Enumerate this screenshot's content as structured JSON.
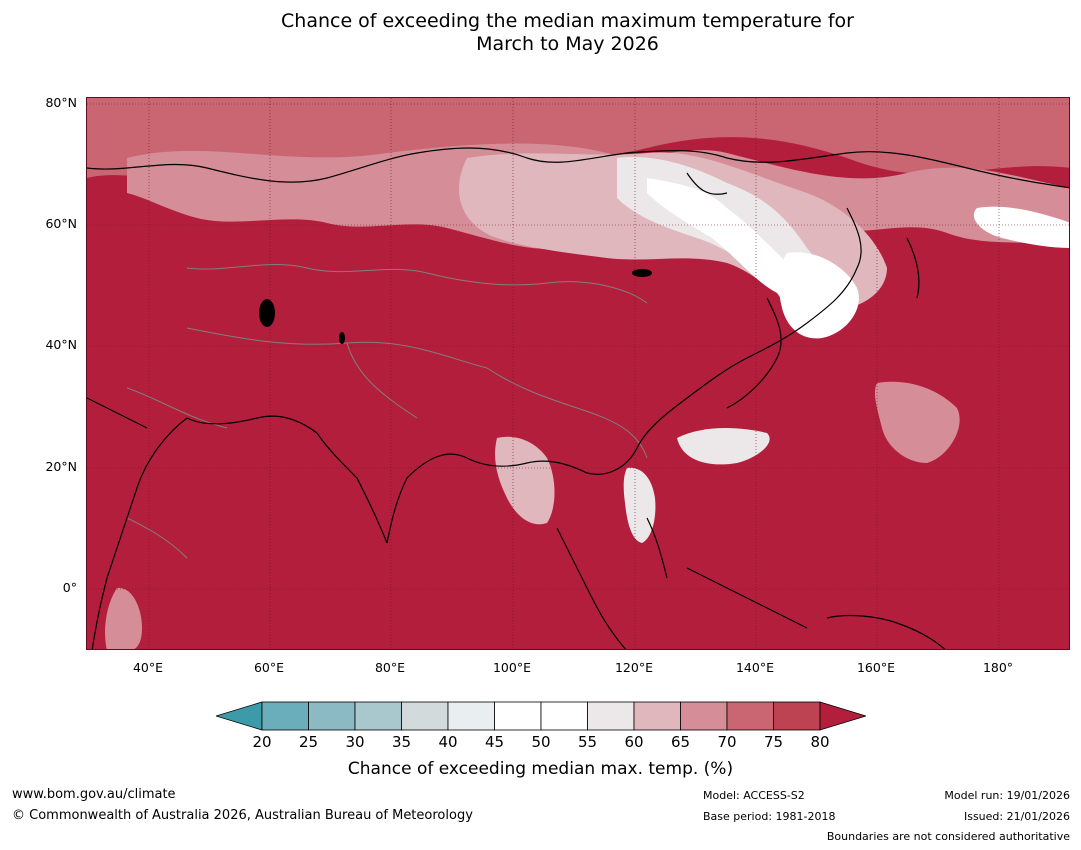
{
  "title": {
    "line1": "Chance of exceeding the median maximum temperature for",
    "line2": "March to May 2026"
  },
  "map": {
    "latitude_labels": [
      "80°N",
      "60°N",
      "40°N",
      "20°N",
      "0°"
    ],
    "longitude_labels": [
      "40°E",
      "60°E",
      "80°E",
      "100°E",
      "120°E",
      "140°E",
      "160°E",
      "180°"
    ],
    "background_color": "#b21e3b",
    "coastline_color": "#000000",
    "boundary_color": "#808080"
  },
  "colorbar": {
    "ticks": [
      "20",
      "25",
      "30",
      "35",
      "40",
      "45",
      "50",
      "55",
      "60",
      "65",
      "70",
      "75",
      "80"
    ],
    "colors": [
      "#3d9aa8",
      "#6aaebb",
      "#8bbac4",
      "#a9c8cd",
      "#d2dadc",
      "#e9eff1",
      "#ffffff",
      "#ffffff",
      "#ece8e9",
      "#e0b7bd",
      "#d58d97",
      "#c96671",
      "#bd4252",
      "#b21e3b"
    ],
    "title": "Chance of exceeding median max. temp. (%)"
  },
  "footer": {
    "website": "www.bom.gov.au/climate",
    "copyright": "© Commonwealth of Australia 2026, Australian Bureau of Meteorology",
    "model": "Model: ACCESS-S2",
    "base_period": "Base period: 1981-2018",
    "model_run": "Model run: 19/01/2026",
    "issued": "Issued: 21/01/2026",
    "disclaimer": "Boundaries are not considered authoritative"
  }
}
